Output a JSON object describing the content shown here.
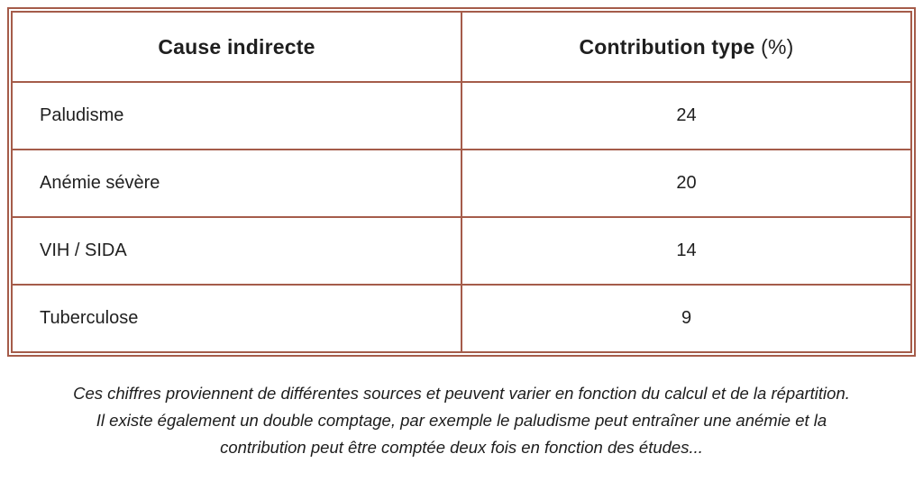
{
  "colors": {
    "border": "#A55C4A",
    "text": "#1F1F1F",
    "background": "#FFFFFF"
  },
  "table": {
    "columns": [
      {
        "label": "Cause indirecte"
      },
      {
        "label": "Contribution type",
        "suffix": "(%)"
      }
    ],
    "rows": [
      {
        "cause": "Paludisme",
        "value": "24"
      },
      {
        "cause": "Anémie sévère",
        "value": "20"
      },
      {
        "cause": "VIH / SIDA",
        "value": "14"
      },
      {
        "cause": "Tuberculose",
        "value": "9"
      }
    ]
  },
  "footnote": {
    "lines": [
      "Ces chiffres proviennent de différentes sources et peuvent varier en fonction du calcul et de la répartition.",
      "Il existe également un double comptage, par exemple le paludisme peut entraîner une anémie et la",
      "contribution peut être comptée deux fois en fonction des études..."
    ]
  },
  "chart_data": {
    "type": "table",
    "title": "",
    "columns": [
      "Cause indirecte",
      "Contribution type (%)"
    ],
    "categories": [
      "Paludisme",
      "Anémie sévère",
      "VIH / SIDA",
      "Tuberculose"
    ],
    "values": [
      24,
      20,
      14,
      9
    ],
    "annotations": [
      "Ces chiffres proviennent de différentes sources et peuvent varier en fonction du calcul et de la répartition. Il existe également un double comptage, par exemple le paludisme peut entraîner une anémie et la contribution peut être comptée deux fois en fonction des études..."
    ]
  }
}
